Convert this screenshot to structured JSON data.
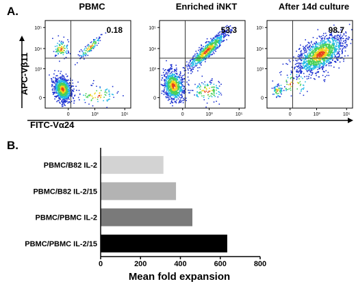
{
  "panel_a": {
    "label": "A.",
    "y_axis_label": "APC-Vβ11",
    "x_axis_label": "FITC-Vα24",
    "y_ticks": [
      "10⁵",
      "10⁴",
      "10³",
      "0"
    ],
    "x_ticks": [
      "0",
      "10³",
      "10⁵"
    ],
    "plots": [
      {
        "title": "PBMC",
        "value": "0.18"
      },
      {
        "title": "Enriched iNKT",
        "value": "53.3"
      },
      {
        "title": "After 14d culture",
        "value": "98.7"
      }
    ]
  },
  "panel_b": {
    "label": "B.",
    "xlabel": "Mean fold expansion"
  },
  "chart_data": [
    {
      "type": "scatter",
      "title": "",
      "xlabel": "FITC-Vα24",
      "ylabel": "APC-Vβ11",
      "panels": [
        {
          "title": "PBMC",
          "quadrant_percent_upper_right": 0.18
        },
        {
          "title": "Enriched iNKT",
          "quadrant_percent_upper_right": 53.3
        },
        {
          "title": "After 14d culture",
          "quadrant_percent_upper_right": 98.7
        }
      ]
    },
    {
      "type": "bar",
      "orientation": "horizontal",
      "title": "",
      "xlabel": "Mean fold expansion",
      "ylabel": "",
      "categories": [
        "PBMC/B82 IL-2",
        "PBMC/B82 IL-2/15",
        "PBMC/PBMC IL-2",
        "PBMC/PBMC IL-2/15"
      ],
      "values": [
        315,
        378,
        460,
        635
      ],
      "bar_colors": [
        "#d3d3d3",
        "#b3b3b3",
        "#7a7a7a",
        "#000000"
      ],
      "xlim": [
        0,
        800
      ],
      "x_ticks": [
        "0",
        "200",
        "400",
        "600",
        "800"
      ],
      "grid": false
    }
  ]
}
